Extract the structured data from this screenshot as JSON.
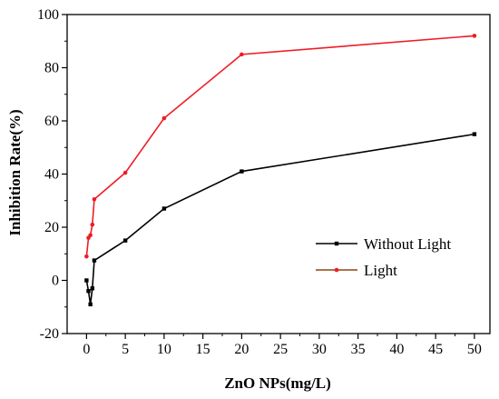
{
  "chart_data": {
    "type": "line",
    "xlabel": "ZnO NPs(mg/L)",
    "ylabel": "Inhibition Rate(%)",
    "xlim": [
      -2.5,
      52
    ],
    "ylim": [
      -20,
      100
    ],
    "xticks": [
      0,
      5,
      10,
      15,
      20,
      25,
      30,
      35,
      40,
      45,
      50
    ],
    "yticks": [
      -20,
      0,
      20,
      40,
      60,
      80,
      100
    ],
    "legend_position": "lower-right",
    "grid": false,
    "series": [
      {
        "name": "Without Light",
        "color": "#000000",
        "marker": "square",
        "legend_line_color": "#000000",
        "x": [
          0,
          0.25,
          0.5,
          0.75,
          1,
          5,
          10,
          20,
          50
        ],
        "y": [
          0,
          -4,
          -9,
          -3,
          7.5,
          15,
          27,
          41,
          55
        ]
      },
      {
        "name": "Light",
        "color": "#ee1c25",
        "marker": "circle",
        "legend_line_color": "#8b4513",
        "x": [
          0,
          0.25,
          0.5,
          0.75,
          1,
          5,
          10,
          20,
          50
        ],
        "y": [
          9,
          16,
          17,
          21,
          30.5,
          40.5,
          61,
          85,
          92
        ]
      }
    ]
  }
}
